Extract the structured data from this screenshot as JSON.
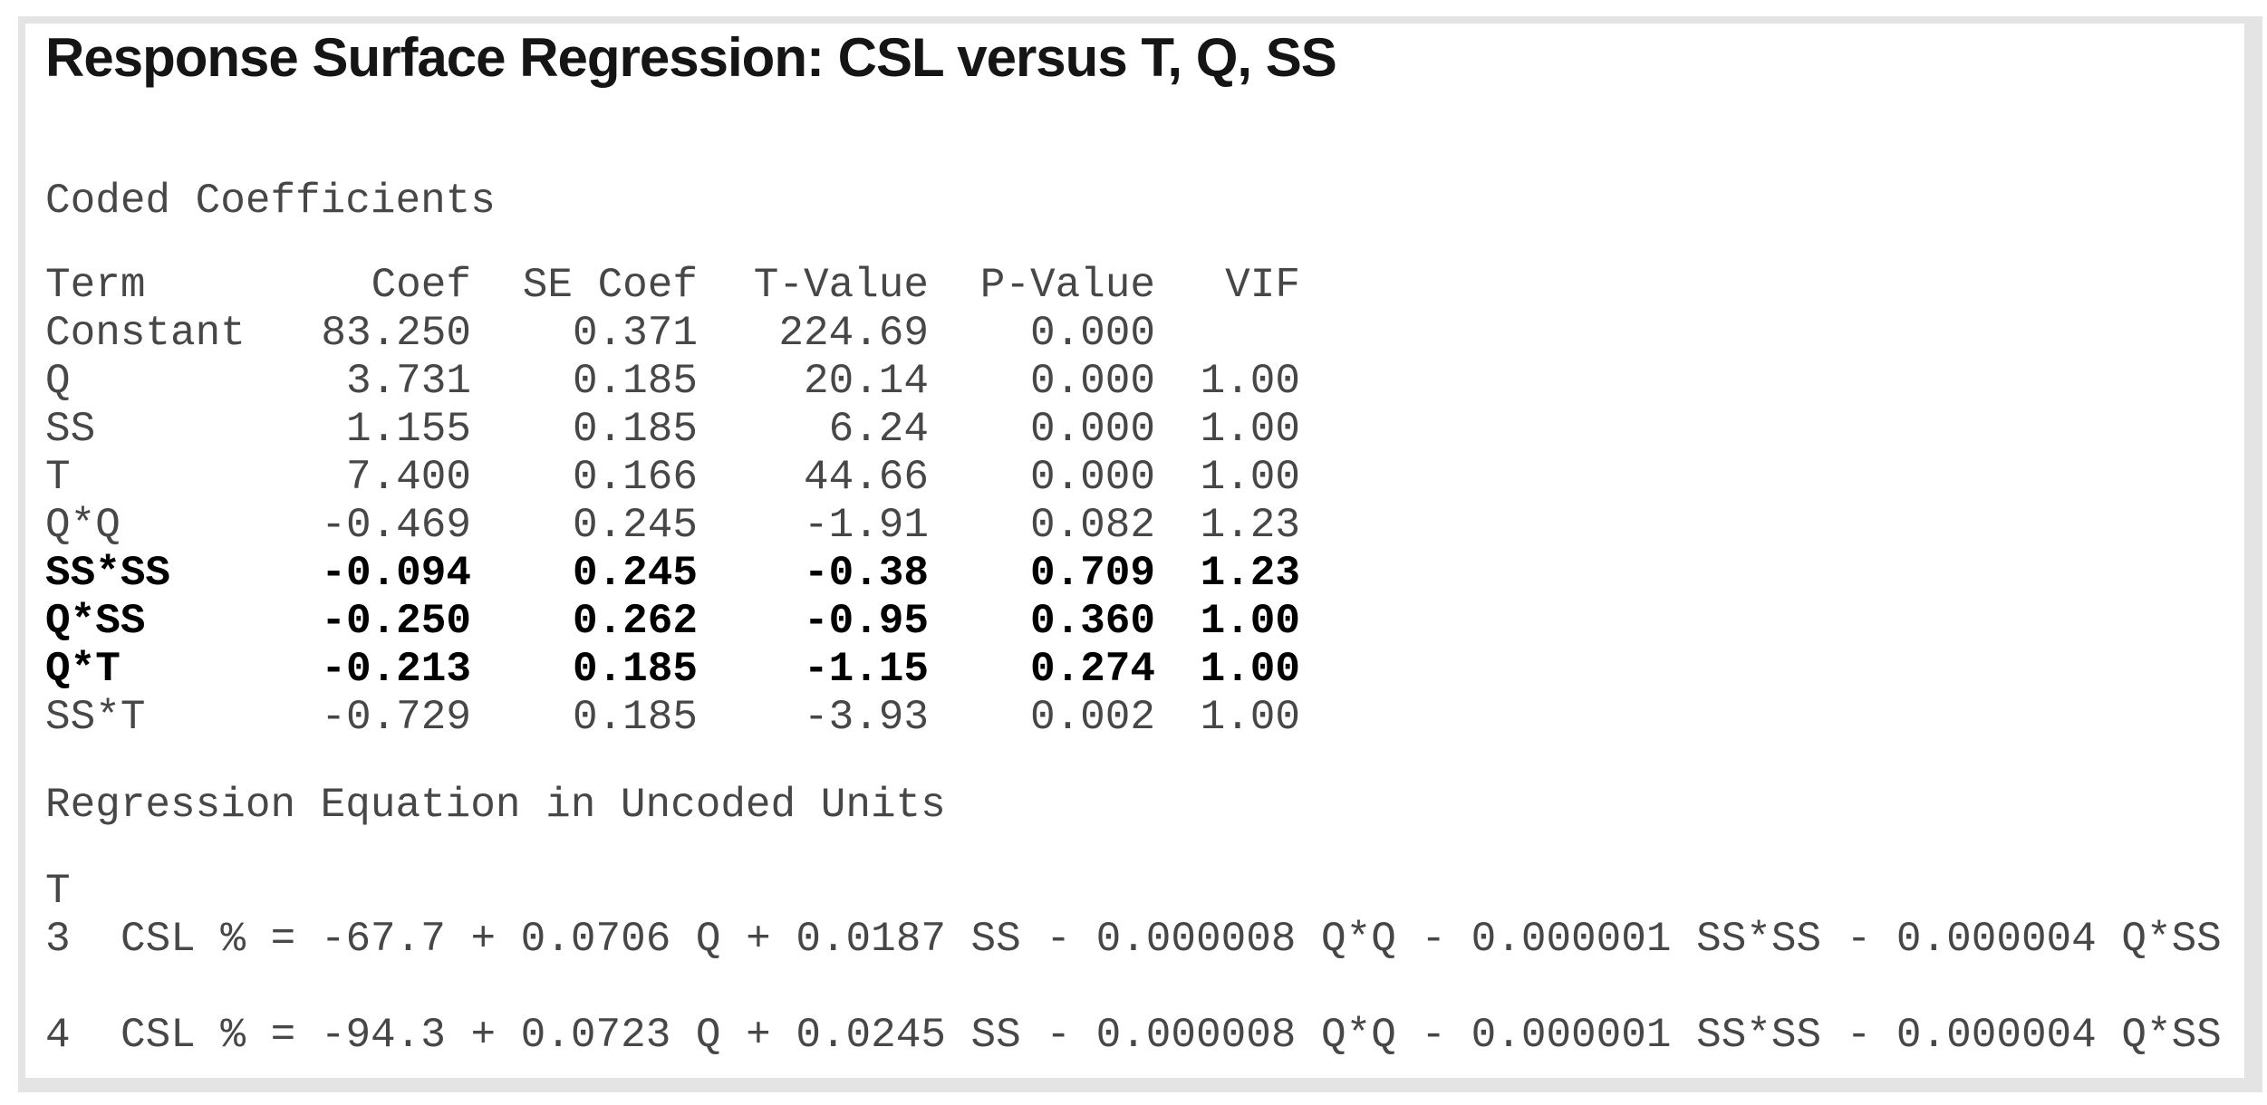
{
  "style": {
    "page_background": "#ffffff",
    "panel_background": "#ffffff",
    "panel_border": "#e4e4e4",
    "title_color": "#151515",
    "text_color": "#474747",
    "bold_text_color": "#000000"
  },
  "title": "Response Surface Regression: CSL versus T, Q, SS",
  "coded_coefficients": {
    "heading": "Coded Coefficients",
    "columns": [
      "Term",
      "Coef",
      "SE Coef",
      "T-Value",
      "P-Value",
      "VIF"
    ],
    "rows": [
      {
        "term": "Constant",
        "coef": "83.250",
        "se_coef": "0.371",
        "t_value": "224.69",
        "p_value": "0.000",
        "vif": "",
        "bold": false
      },
      {
        "term": "Q",
        "coef": "3.731",
        "se_coef": "0.185",
        "t_value": "20.14",
        "p_value": "0.000",
        "vif": "1.00",
        "bold": false
      },
      {
        "term": "SS",
        "coef": "1.155",
        "se_coef": "0.185",
        "t_value": "6.24",
        "p_value": "0.000",
        "vif": "1.00",
        "bold": false
      },
      {
        "term": "T",
        "coef": "7.400",
        "se_coef": "0.166",
        "t_value": "44.66",
        "p_value": "0.000",
        "vif": "1.00",
        "bold": false
      },
      {
        "term": "Q*Q",
        "coef": "-0.469",
        "se_coef": "0.245",
        "t_value": "-1.91",
        "p_value": "0.082",
        "vif": "1.23",
        "bold": false
      },
      {
        "term": "SS*SS",
        "coef": "-0.094",
        "se_coef": "0.245",
        "t_value": "-0.38",
        "p_value": "0.709",
        "vif": "1.23",
        "bold": true
      },
      {
        "term": "Q*SS",
        "coef": "-0.250",
        "se_coef": "0.262",
        "t_value": "-0.95",
        "p_value": "0.360",
        "vif": "1.00",
        "bold": true
      },
      {
        "term": "Q*T",
        "coef": "-0.213",
        "se_coef": "0.185",
        "t_value": "-1.15",
        "p_value": "0.274",
        "vif": "1.00",
        "bold": true
      },
      {
        "term": "SS*T",
        "coef": "-0.729",
        "se_coef": "0.185",
        "t_value": "-3.93",
        "p_value": "0.002",
        "vif": "1.00",
        "bold": false
      }
    ]
  },
  "regression_equation": {
    "heading": "Regression Equation in Uncoded Units",
    "group_label": "T",
    "equations": [
      {
        "t": "3",
        "equation": "CSL % = -67.7 + 0.0706 Q + 0.0187 SS - 0.000008 Q*Q - 0.000001 SS*SS - 0.000004 Q*SS"
      },
      {
        "t": "4",
        "equation": "CSL % = -94.3 + 0.0723 Q + 0.0245 SS - 0.000008 Q*Q - 0.000001 SS*SS - 0.000004 Q*SS"
      }
    ]
  }
}
